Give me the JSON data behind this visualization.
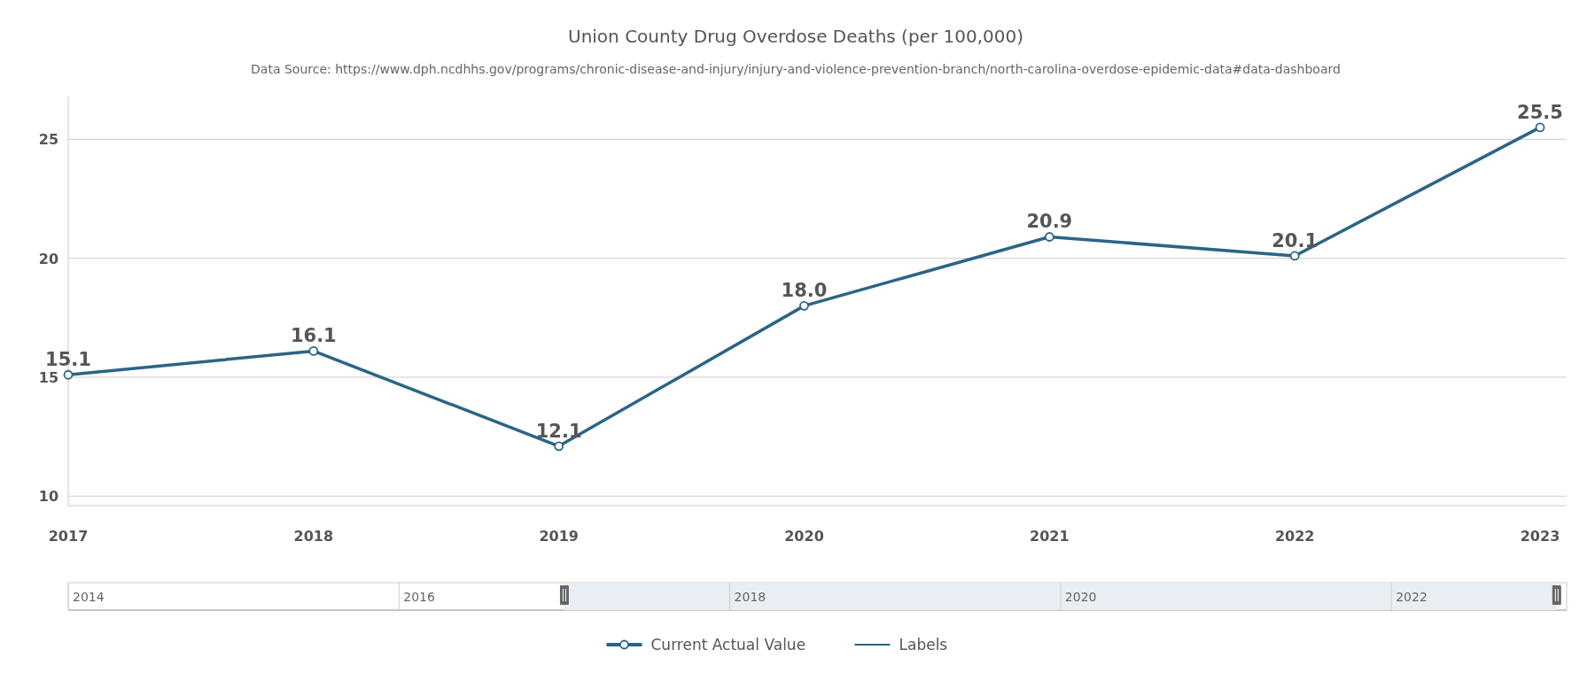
{
  "chart_data": {
    "type": "line",
    "title": "Union County Drug Overdose Deaths (per 100,000)",
    "subtitle": "Data Source: https://www.dph.ncdhhs.gov/programs/chronic-disease-and-injury/injury-and-violence-prevention-branch/north-carolina-overdose-epidemic-data#data-dashboard",
    "categories": [
      "2017",
      "2018",
      "2019",
      "2020",
      "2021",
      "2022",
      "2023"
    ],
    "series": [
      {
        "name": "Current Actual Value",
        "color": "#2b6586",
        "values": [
          15.1,
          16.1,
          12.1,
          18.0,
          20.9,
          20.1,
          25.5
        ],
        "value_labels": [
          "15.1",
          "16.1",
          "12.1",
          "18.0",
          "20.9",
          "20.1",
          "25.5"
        ]
      },
      {
        "name": "Labels",
        "color": "#2b6586",
        "values": [
          null,
          null,
          null,
          null,
          null,
          null,
          null
        ],
        "marker": "none"
      }
    ],
    "ylim": [
      9.6,
      26.8
    ],
    "yticks": [
      10,
      15,
      20,
      25
    ],
    "x2lim": [
      2014,
      2023.06
    ],
    "x2ticks": [
      2014,
      2016,
      2018,
      2020,
      2022
    ],
    "grid": "y",
    "legend": "bottom",
    "marker": "circle",
    "line_style": "solid"
  }
}
